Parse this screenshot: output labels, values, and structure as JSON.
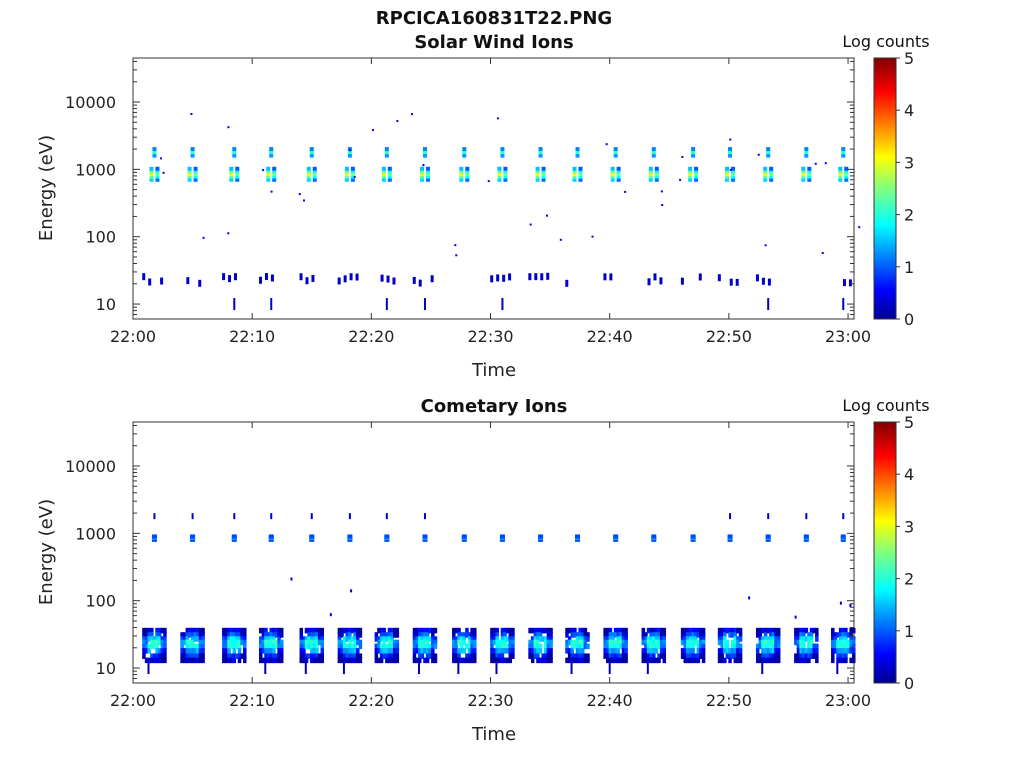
{
  "figure_title": "RPCICA160831T22.PNG",
  "chart_data": [
    {
      "type": "heatmap",
      "title": "Solar Wind Ions",
      "xlabel": "Time",
      "ylabel": "Energy (eV)",
      "x_ticks": [
        "22:00",
        "22:10",
        "22:20",
        "22:30",
        "22:40",
        "22:50",
        "23:00"
      ],
      "y_ticks": [
        "10",
        "100",
        "1000",
        "10000"
      ],
      "y_scale": "log",
      "ylim": [
        6,
        45000
      ],
      "xlim_minutes": [
        0,
        60.5
      ],
      "colorbar": {
        "label": "Log counts",
        "min": 0,
        "max": 5,
        "ticks": [
          "0",
          "1",
          "2",
          "3",
          "4",
          "5"
        ],
        "colormap": "jet"
      },
      "sweep_minutes": [
        1.8,
        5.0,
        8.5,
        11.6,
        15.0,
        18.2,
        21.3,
        24.5,
        27.8,
        31.0,
        34.2,
        37.3,
        40.5,
        43.7,
        47.0,
        50.1,
        53.3,
        56.5,
        59.6
      ],
      "peak_energy_eV": 850,
      "peak_log_counts": 3.0,
      "secondary_energy_eV": 1800,
      "low_energy_band_eV": [
        10,
        30
      ],
      "low_energy_log_counts": 0.3
    },
    {
      "type": "heatmap",
      "title": "Cometary Ions",
      "xlabel": "Time",
      "ylabel": "Energy (eV)",
      "x_ticks": [
        "22:00",
        "22:10",
        "22:20",
        "22:30",
        "22:40",
        "22:50",
        "23:00"
      ],
      "y_ticks": [
        "10",
        "100",
        "1000",
        "10000"
      ],
      "y_scale": "log",
      "ylim": [
        6,
        45000
      ],
      "xlim_minutes": [
        0,
        60.5
      ],
      "colorbar": {
        "label": "Log counts",
        "min": 0,
        "max": 5,
        "ticks": [
          "0",
          "1",
          "2",
          "3",
          "4",
          "5"
        ],
        "colormap": "jet"
      },
      "sweep_minutes": [
        1.8,
        5.0,
        8.5,
        11.6,
        15.0,
        18.2,
        21.3,
        24.5,
        27.8,
        31.0,
        34.2,
        37.3,
        40.5,
        43.7,
        47.0,
        50.1,
        53.3,
        56.5,
        59.6
      ],
      "peak_energy_eV": 850,
      "peak_log_counts": 1.3,
      "low_energy_band_eV": [
        12,
        35
      ],
      "low_energy_log_counts": 2.0
    }
  ]
}
